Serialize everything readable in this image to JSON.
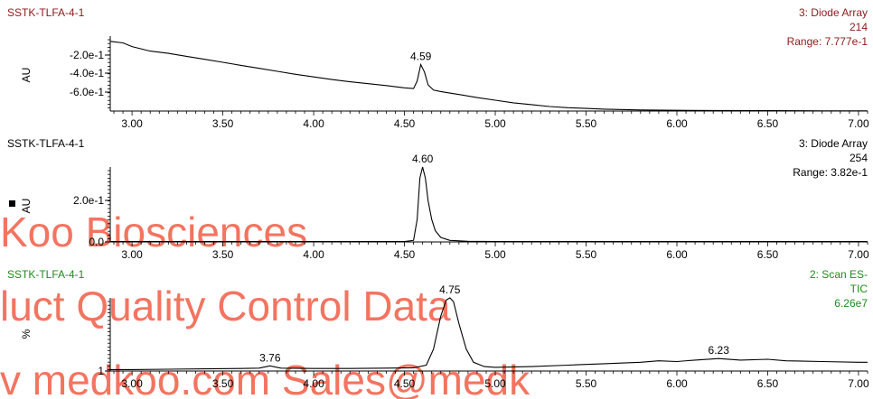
{
  "colors": {
    "dark_red": "#8B1A1A",
    "green": "#1E8B1E",
    "trace": "#000000",
    "watermark": "#F25C45"
  },
  "watermark": {
    "lines": [
      "Koo Biosciences",
      "luct Quality Control Data",
      "v medkoo.com   Sales@medk"
    ]
  },
  "chart_data": [
    {
      "type": "line",
      "sample": "SSTK-TLFA-4-1",
      "detector": "3: Diode Array",
      "channel": "214",
      "range_text": "Range: 7.777e-1",
      "ylabel": "AU",
      "y_ticks": [
        "-2.0e-1",
        "-4.0e-1",
        "-6.0e-1"
      ],
      "x_ticks": [
        "3.00",
        "3.50",
        "4.00",
        "4.50",
        "5.00",
        "5.50",
        "6.00",
        "6.50",
        "7.00"
      ],
      "xlim": [
        2.88,
        7.05
      ],
      "peaks": [
        {
          "x": 4.59,
          "label": "4.59"
        }
      ],
      "series": [
        {
          "points": [
            [
              2.88,
              0.93
            ],
            [
              2.95,
              0.91
            ],
            [
              3.0,
              0.86
            ],
            [
              3.1,
              0.8
            ],
            [
              3.2,
              0.77
            ],
            [
              3.3,
              0.73
            ],
            [
              3.4,
              0.69
            ],
            [
              3.5,
              0.65
            ],
            [
              3.6,
              0.61
            ],
            [
              3.7,
              0.57
            ],
            [
              3.8,
              0.53
            ],
            [
              3.9,
              0.49
            ],
            [
              4.0,
              0.455
            ],
            [
              4.1,
              0.42
            ],
            [
              4.2,
              0.39
            ],
            [
              4.3,
              0.365
            ],
            [
              4.4,
              0.34
            ],
            [
              4.5,
              0.31
            ],
            [
              4.55,
              0.3
            ],
            [
              4.57,
              0.4
            ],
            [
              4.59,
              0.62
            ],
            [
              4.61,
              0.52
            ],
            [
              4.63,
              0.35
            ],
            [
              4.66,
              0.28
            ],
            [
              4.7,
              0.26
            ],
            [
              4.8,
              0.22
            ],
            [
              4.9,
              0.18
            ],
            [
              5.0,
              0.145
            ],
            [
              5.1,
              0.11
            ],
            [
              5.2,
              0.085
            ],
            [
              5.3,
              0.06
            ],
            [
              5.4,
              0.045
            ],
            [
              5.5,
              0.035
            ],
            [
              5.6,
              0.025
            ],
            [
              5.8,
              0.015
            ],
            [
              6.0,
              0.01
            ],
            [
              6.2,
              0.007
            ],
            [
              6.5,
              0.005
            ],
            [
              6.8,
              0.003
            ],
            [
              7.0,
              0.002
            ],
            [
              7.05,
              0.002
            ]
          ]
        }
      ]
    },
    {
      "type": "line",
      "sample": "SSTK-TLFA-4-1",
      "detector": "3: Diode Array",
      "channel": "254",
      "range_text": "Range: 3.82e-1",
      "ylabel": "AU",
      "y_ticks": [
        "2.0e-1",
        "0.0"
      ],
      "x_ticks": [
        "3.00",
        "3.50",
        "4.00",
        "4.50",
        "5.00",
        "5.50",
        "6.00",
        "6.50",
        "7.00"
      ],
      "xlim": [
        2.88,
        7.05
      ],
      "peaks": [
        {
          "x": 4.6,
          "label": "4.60"
        }
      ],
      "series": [
        {
          "points": [
            [
              2.88,
              0.005
            ],
            [
              3.5,
              0.005
            ],
            [
              4.0,
              0.005
            ],
            [
              4.5,
              0.006
            ],
            [
              4.55,
              0.02
            ],
            [
              4.57,
              0.3
            ],
            [
              4.585,
              0.85
            ],
            [
              4.6,
              1.0
            ],
            [
              4.615,
              0.85
            ],
            [
              4.63,
              0.55
            ],
            [
              4.65,
              0.3
            ],
            [
              4.67,
              0.15
            ],
            [
              4.7,
              0.06
            ],
            [
              4.75,
              0.02
            ],
            [
              4.85,
              0.008
            ],
            [
              5.0,
              0.006
            ],
            [
              6.0,
              0.005
            ],
            [
              7.05,
              0.005
            ]
          ]
        }
      ]
    },
    {
      "type": "line",
      "sample": "SSTK-TLFA-4-1",
      "detector": "2: Scan ES-",
      "channel": "TIC",
      "range_text": "6.26e7",
      "ylabel": "%",
      "y_ticks": [
        "1"
      ],
      "x_ticks": [
        "3.00",
        "3.50",
        "4.00",
        "4.50",
        "5.00",
        "5.50",
        "6.00",
        "6.50",
        "7.00"
      ],
      "xlim": [
        2.88,
        7.05
      ],
      "peaks": [
        {
          "x": 3.76,
          "label": "3.76"
        },
        {
          "x": 4.75,
          "label": "4.75"
        },
        {
          "x": 6.23,
          "label": "6.23"
        }
      ],
      "series": [
        {
          "points": [
            [
              2.88,
              0.02
            ],
            [
              3.0,
              0.02
            ],
            [
              3.2,
              0.025
            ],
            [
              3.4,
              0.03
            ],
            [
              3.6,
              0.035
            ],
            [
              3.7,
              0.04
            ],
            [
              3.76,
              0.07
            ],
            [
              3.82,
              0.04
            ],
            [
              4.0,
              0.035
            ],
            [
              4.2,
              0.035
            ],
            [
              4.4,
              0.04
            ],
            [
              4.55,
              0.045
            ],
            [
              4.62,
              0.08
            ],
            [
              4.66,
              0.3
            ],
            [
              4.7,
              0.75
            ],
            [
              4.73,
              0.97
            ],
            [
              4.75,
              1.0
            ],
            [
              4.77,
              0.95
            ],
            [
              4.8,
              0.65
            ],
            [
              4.84,
              0.3
            ],
            [
              4.88,
              0.12
            ],
            [
              4.94,
              0.06
            ],
            [
              5.0,
              0.05
            ],
            [
              5.2,
              0.06
            ],
            [
              5.4,
              0.08
            ],
            [
              5.6,
              0.1
            ],
            [
              5.8,
              0.12
            ],
            [
              5.9,
              0.14
            ],
            [
              6.0,
              0.13
            ],
            [
              6.1,
              0.15
            ],
            [
              6.23,
              0.17
            ],
            [
              6.35,
              0.15
            ],
            [
              6.5,
              0.16
            ],
            [
              6.6,
              0.14
            ],
            [
              6.8,
              0.13
            ],
            [
              7.0,
              0.12
            ],
            [
              7.05,
              0.12
            ]
          ]
        }
      ]
    }
  ]
}
